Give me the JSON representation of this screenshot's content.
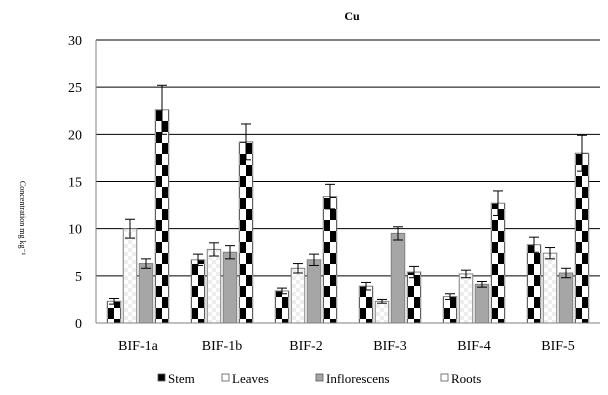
{
  "chart_data": {
    "type": "bar",
    "title": "Cu",
    "ylabel": "Concentration mg kg⁻¹",
    "xlabel": "",
    "ylim": [
      0,
      30
    ],
    "yticks": [
      0,
      5,
      10,
      15,
      20,
      25,
      30
    ],
    "grid": true,
    "legend_position": "bottom",
    "categories": [
      "BIF-1a",
      "BIF-1b",
      "BIF-2",
      "BIF-3",
      "BIF-4",
      "BIF-5"
    ],
    "series": [
      {
        "name": "Stem",
        "pattern": "checker",
        "color": "#000000",
        "values": [
          2.3,
          6.7,
          3.4,
          3.9,
          2.8,
          8.3
        ],
        "errors": [
          0.3,
          0.6,
          0.3,
          0.4,
          0.3,
          0.8
        ]
      },
      {
        "name": "Leaves",
        "pattern": "light-dots",
        "color": "#ffffff",
        "values": [
          10.0,
          7.8,
          5.8,
          2.3,
          5.2,
          7.4
        ],
        "errors": [
          1.0,
          0.7,
          0.5,
          0.2,
          0.4,
          0.6
        ]
      },
      {
        "name": "Inflorescens",
        "pattern": "solid",
        "color": "#a6a6a6",
        "values": [
          6.3,
          7.5,
          6.7,
          9.5,
          4.1,
          5.3
        ],
        "errors": [
          0.5,
          0.7,
          0.6,
          0.7,
          0.3,
          0.5
        ]
      },
      {
        "name": "Roots",
        "pattern": "checker",
        "color": "#000000",
        "values": [
          22.6,
          19.2,
          13.4,
          5.4,
          12.7,
          18.0
        ],
        "errors": [
          2.6,
          1.9,
          1.3,
          0.6,
          1.3,
          1.9
        ]
      }
    ]
  }
}
